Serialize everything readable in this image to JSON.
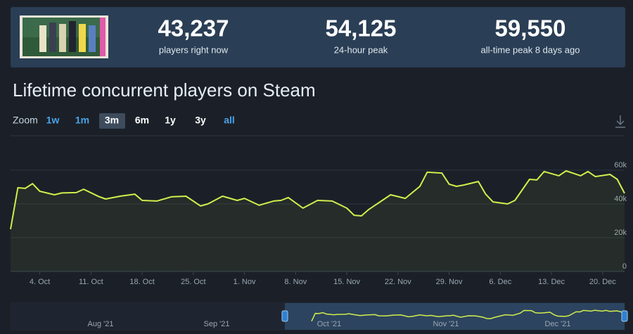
{
  "stats": [
    {
      "value": "43,237",
      "label": "players right now"
    },
    {
      "value": "54,125",
      "label": "24-hour peak"
    },
    {
      "value": "59,550",
      "label": "all-time peak 8 days ago"
    }
  ],
  "zoom": {
    "label": "Zoom",
    "options": [
      "1w",
      "1m",
      "3m",
      "6m",
      "1y",
      "3y",
      "all"
    ]
  },
  "chart_data": {
    "type": "line",
    "title": "Lifetime concurrent players on Steam",
    "color": "#d2ee4c",
    "x": [
      "2021-09-30",
      "2021-10-01",
      "2021-10-02",
      "2021-10-03",
      "2021-10-04",
      "2021-10-06",
      "2021-10-07",
      "2021-10-09",
      "2021-10-10",
      "2021-10-12",
      "2021-10-13",
      "2021-10-15",
      "2021-10-17",
      "2021-10-18",
      "2021-10-20",
      "2021-10-22",
      "2021-10-24",
      "2021-10-26",
      "2021-10-27",
      "2021-10-29",
      "2021-10-31",
      "2021-11-01",
      "2021-11-03",
      "2021-11-05",
      "2021-11-06",
      "2021-11-07",
      "2021-11-09",
      "2021-11-11",
      "2021-11-13",
      "2021-11-15",
      "2021-11-16",
      "2021-11-17",
      "2021-11-18",
      "2021-11-20",
      "2021-11-21",
      "2021-11-23",
      "2021-11-25",
      "2021-11-26",
      "2021-11-28",
      "2021-11-29",
      "2021-11-30",
      "2021-12-01",
      "2021-12-03",
      "2021-12-04",
      "2021-12-05",
      "2021-12-07",
      "2021-12-08",
      "2021-12-10",
      "2021-12-11",
      "2021-12-12",
      "2021-12-14",
      "2021-12-15",
      "2021-12-17",
      "2021-12-18",
      "2021-12-19",
      "2021-12-21",
      "2021-12-22",
      "2021-12-23"
    ],
    "values": [
      25000,
      49600,
      49200,
      52000,
      47500,
      45400,
      46500,
      46700,
      48700,
      44500,
      42900,
      44600,
      45800,
      42100,
      41700,
      44200,
      44600,
      38800,
      40000,
      44600,
      42100,
      43300,
      39200,
      41700,
      42100,
      43800,
      37500,
      42100,
      41700,
      37500,
      33300,
      32900,
      36700,
      42500,
      45400,
      43300,
      50400,
      58800,
      58300,
      51700,
      50400,
      51200,
      53300,
      45800,
      41200,
      40000,
      42100,
      54600,
      54200,
      59200,
      56700,
      59600,
      56700,
      59200,
      56200,
      57500,
      54600,
      46300
    ],
    "xlim": [
      "2021-09-30",
      "2021-12-23"
    ],
    "xticks": [
      {
        "value": "2021-10-04",
        "label": "4. Oct"
      },
      {
        "value": "2021-10-11",
        "label": "11. Oct"
      },
      {
        "value": "2021-10-18",
        "label": "18. Oct"
      },
      {
        "value": "2021-10-25",
        "label": "25. Oct"
      },
      {
        "value": "2021-11-01",
        "label": "1. Nov"
      },
      {
        "value": "2021-11-08",
        "label": "8. Nov"
      },
      {
        "value": "2021-11-15",
        "label": "15. Nov"
      },
      {
        "value": "2021-11-22",
        "label": "22. Nov"
      },
      {
        "value": "2021-11-29",
        "label": "29. Nov"
      },
      {
        "value": "2021-12-06",
        "label": "6. Dec"
      },
      {
        "value": "2021-12-13",
        "label": "13. Dec"
      },
      {
        "value": "2021-12-20",
        "label": "20. Dec"
      }
    ],
    "ylim": [
      0,
      80000
    ],
    "yticks": [
      0,
      {
        "value": 20000,
        "label": "20k"
      },
      {
        "value": 40000,
        "label": "40k"
      },
      {
        "value": 60000,
        "label": "60k"
      }
    ],
    "grid": true,
    "navigator_labels": [
      "Aug '21",
      "Sep '21",
      "Oct '21",
      "Nov '21",
      "Dec '21"
    ]
  }
}
